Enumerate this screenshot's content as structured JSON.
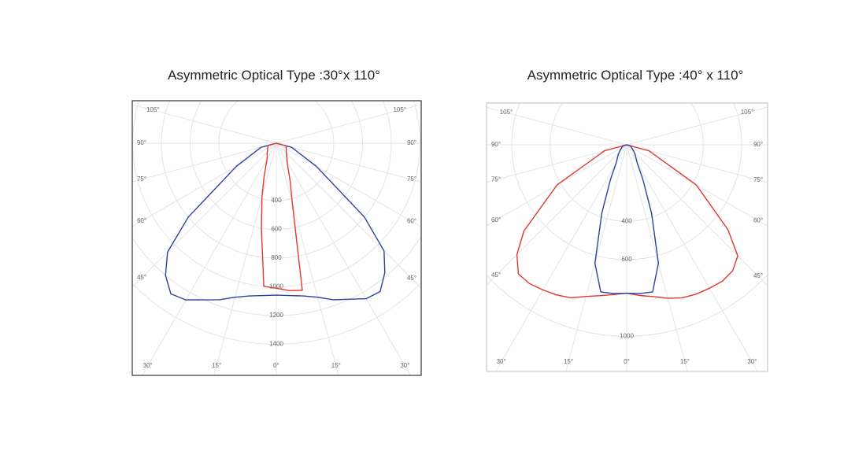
{
  "chart_data": [
    {
      "type": "polar",
      "title": "Asymmetric Optical Type :30°x 110°",
      "rlim": [
        0,
        1600
      ],
      "rticks": [
        400,
        600,
        800,
        1000,
        1200,
        1400
      ],
      "angle_ticks": [
        {
          "value": 0,
          "label": "0°"
        },
        {
          "value": 15,
          "label": "15°"
        },
        {
          "value": 30,
          "label": "30°"
        },
        {
          "value": 45,
          "label": "45°"
        },
        {
          "value": 60,
          "label": "60°"
        },
        {
          "value": 75,
          "label": "75°"
        },
        {
          "value": 90,
          "label": "90°"
        },
        {
          "value": 105,
          "label": "105°"
        }
      ],
      "theta": [
        -90,
        -75,
        -60,
        -50,
        -45,
        -40,
        -35,
        -30,
        -20,
        -15,
        -10,
        -5,
        0,
        5,
        10,
        15,
        20,
        30,
        35,
        40,
        45,
        50,
        60,
        75,
        90
      ],
      "series": [
        {
          "color": "#2f3fa6",
          "values": [
            0,
            110,
            320,
            800,
            1070,
            1200,
            1280,
            1260,
            1160,
            1110,
            1080,
            1065,
            1058,
            1065,
            1080,
            1110,
            1160,
            1250,
            1260,
            1175,
            1060,
            800,
            320,
            110,
            0
          ]
        },
        {
          "color": "#e0392d",
          "values": [
            0,
            60,
            70,
            80,
            90,
            100,
            110,
            130,
            250,
            386,
            600,
            1000,
            1010,
            1030,
            1040,
            430,
            280,
            150,
            130,
            110,
            100,
            90,
            80,
            70,
            0
          ]
        }
      ]
    },
    {
      "type": "polar",
      "title": "Asymmetric Optical Type :40° x 110°",
      "rlim": [
        0,
        1200
      ],
      "rticks": [
        400,
        600,
        1000
      ],
      "angle_ticks": [
        {
          "value": 0,
          "label": "0°"
        },
        {
          "value": 15,
          "label": "15°"
        },
        {
          "value": 30,
          "label": "30°"
        },
        {
          "value": 45,
          "label": "45°"
        },
        {
          "value": 60,
          "label": "60°"
        },
        {
          "value": 75,
          "label": "75°"
        },
        {
          "value": 90,
          "label": "90°"
        },
        {
          "value": 105,
          "label": "105°"
        }
      ],
      "theta": [
        -90,
        -75,
        -60,
        -50,
        -45,
        -40,
        -35,
        -30,
        -25,
        -20,
        -15,
        -10,
        -5,
        0,
        5,
        10,
        15,
        20,
        25,
        30,
        35,
        40,
        45,
        50,
        60,
        75,
        90
      ],
      "series": [
        {
          "color": "#e0392d",
          "values": [
            0,
            120,
            420,
            700,
            810,
            880,
            885,
            875,
            865,
            850,
            820,
            800,
            785,
            775,
            790,
            805,
            830,
            850,
            860,
            865,
            870,
            860,
            820,
            690,
            420,
            120,
            0
          ]
        },
        {
          "color": "#2f3fa6",
          "values": [
            0,
            20,
            30,
            45,
            55,
            70,
            85,
            110,
            200,
            380,
            640,
            780,
            780,
            775,
            780,
            780,
            640,
            380,
            200,
            110,
            85,
            70,
            55,
            45,
            30,
            20,
            0
          ]
        }
      ]
    }
  ]
}
